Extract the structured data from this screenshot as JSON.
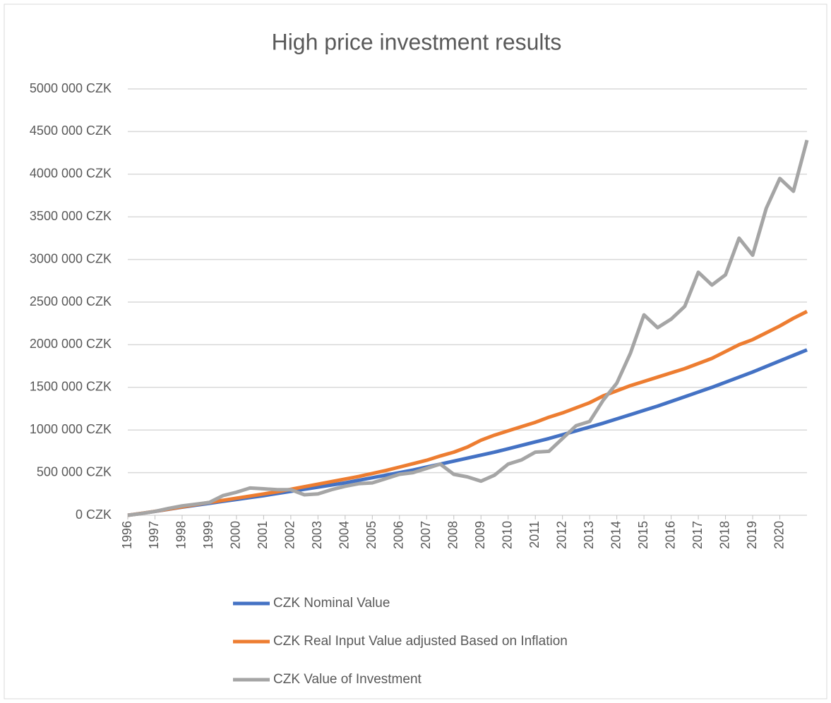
{
  "chart_data": {
    "type": "line",
    "title": "High price investment results",
    "x": [
      1996,
      1996.5,
      1997,
      1997.5,
      1998,
      1998.5,
      1999,
      1999.5,
      2000,
      2000.5,
      2001,
      2001.5,
      2002,
      2002.5,
      2003,
      2003.5,
      2004,
      2004.5,
      2005,
      2005.5,
      2006,
      2006.5,
      2007,
      2007.5,
      2008,
      2008.5,
      2009,
      2009.5,
      2010,
      2010.5,
      2011,
      2011.5,
      2012,
      2012.5,
      2013,
      2013.5,
      2014,
      2014.5,
      2015,
      2015.5,
      2016,
      2016.5,
      2017,
      2017.5,
      2018,
      2018.5,
      2019,
      2019.5,
      2020,
      2020.5,
      2021
    ],
    "series": [
      {
        "name": "CZK Nominal Value",
        "color": "#4472c4",
        "values": [
          0,
          22000,
          45000,
          70000,
          95000,
          118000,
          140000,
          163000,
          185000,
          208000,
          230000,
          255000,
          280000,
          305000,
          330000,
          355000,
          380000,
          410000,
          440000,
          470000,
          500000,
          530000,
          565000,
          600000,
          635000,
          670000,
          705000,
          740000,
          780000,
          820000,
          860000,
          900000,
          945000,
          990000,
          1035000,
          1080000,
          1130000,
          1180000,
          1230000,
          1280000,
          1335000,
          1390000,
          1445000,
          1500000,
          1560000,
          1620000,
          1680000,
          1745000,
          1810000,
          1875000,
          1940000
        ]
      },
      {
        "name": "CZK Real Input Value adjusted Based on Inflation",
        "color": "#ed7d31",
        "values": [
          0,
          22000,
          46000,
          72000,
          98000,
          125000,
          150000,
          175000,
          200000,
          225000,
          250000,
          275000,
          305000,
          335000,
          365000,
          395000,
          425000,
          455000,
          490000,
          525000,
          565000,
          605000,
          645000,
          695000,
          740000,
          800000,
          880000,
          940000,
          990000,
          1040000,
          1090000,
          1150000,
          1200000,
          1260000,
          1320000,
          1400000,
          1460000,
          1520000,
          1570000,
          1620000,
          1670000,
          1720000,
          1780000,
          1840000,
          1920000,
          2000000,
          2060000,
          2140000,
          2220000,
          2310000,
          2390000
        ]
      },
      {
        "name": "CZK Value of Investment",
        "color": "#a5a5a5",
        "values": [
          0,
          20000,
          45000,
          80000,
          110000,
          130000,
          150000,
          230000,
          270000,
          320000,
          310000,
          300000,
          300000,
          240000,
          250000,
          300000,
          340000,
          370000,
          380000,
          430000,
          480000,
          500000,
          550000,
          600000,
          480000,
          450000,
          400000,
          470000,
          600000,
          650000,
          740000,
          750000,
          900000,
          1050000,
          1100000,
          1350000,
          1550000,
          1900000,
          2350000,
          2200000,
          2300000,
          2450000,
          2850000,
          2700000,
          2820000,
          3250000,
          3050000,
          3600000,
          3950000,
          3800000,
          4400000
        ]
      }
    ],
    "xlim": [
      1996,
      2021
    ],
    "xticks": [
      1996,
      1997,
      1998,
      1999,
      2000,
      2001,
      2002,
      2003,
      2004,
      2005,
      2006,
      2007,
      2008,
      2009,
      2010,
      2011,
      2012,
      2013,
      2014,
      2015,
      2016,
      2017,
      2018,
      2019,
      2020
    ],
    "ylim": [
      0,
      5000000
    ],
    "yticks": [
      {
        "value": 0,
        "label": "0 CZK"
      },
      {
        "value": 500000,
        "label": "500 000 CZK"
      },
      {
        "value": 1000000,
        "label": "1000 000 CZK"
      },
      {
        "value": 1500000,
        "label": "1500 000 CZK"
      },
      {
        "value": 2000000,
        "label": "2000 000 CZK"
      },
      {
        "value": 2500000,
        "label": "2500 000 CZK"
      },
      {
        "value": 3000000,
        "label": "3000 000 CZK"
      },
      {
        "value": 3500000,
        "label": "3500 000 CZK"
      },
      {
        "value": 4000000,
        "label": "4000 000 CZK"
      },
      {
        "value": 4500000,
        "label": "4500 000 CZK"
      },
      {
        "value": 5000000,
        "label": "5000 000 CZK"
      }
    ],
    "grid": true,
    "legend": "bottom"
  }
}
